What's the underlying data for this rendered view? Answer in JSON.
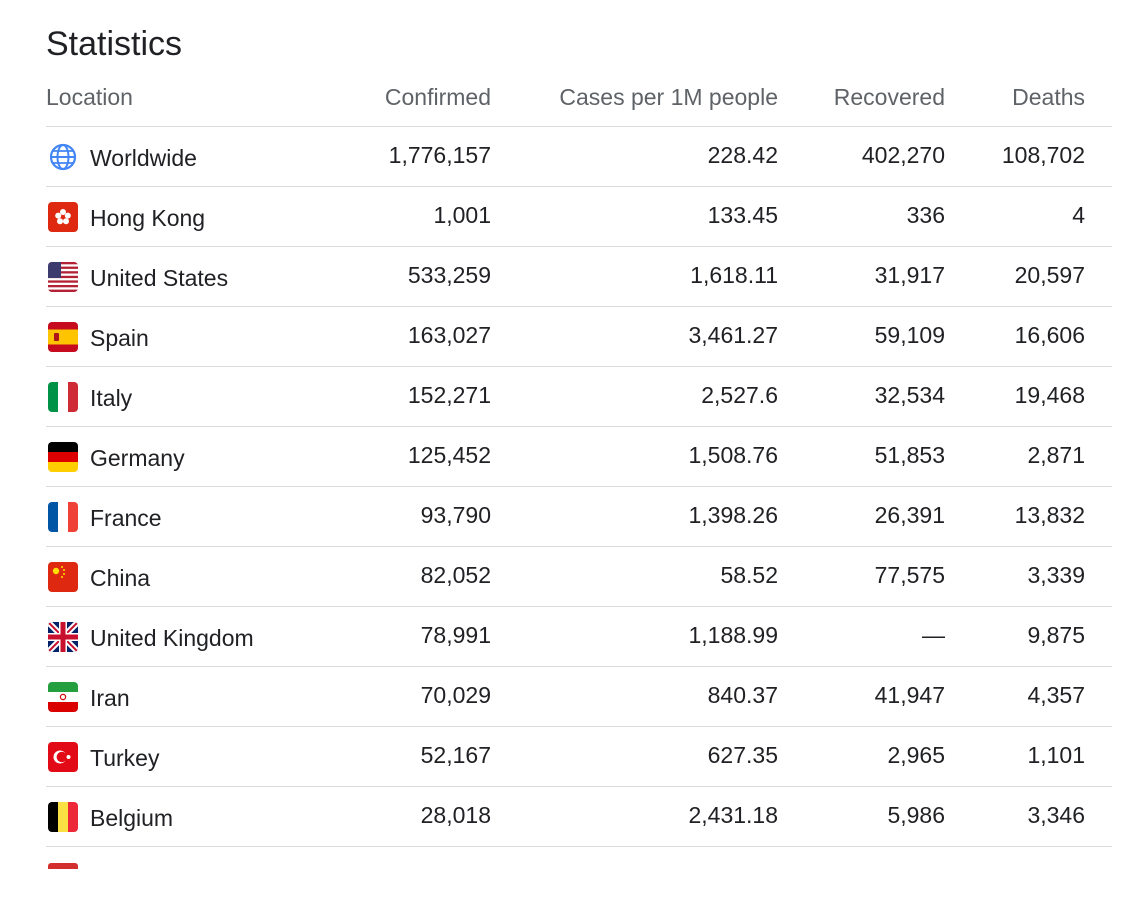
{
  "title": "Statistics",
  "headers": {
    "location": "Location",
    "confirmed": "Confirmed",
    "cases_per_1m": "Cases per 1M people",
    "recovered": "Recovered",
    "deaths": "Deaths"
  },
  "rows": [
    {
      "location": "Worldwide",
      "icon": "globe-icon",
      "confirmed": "1,776,157",
      "cases_per_1m": "228.42",
      "recovered": "402,270",
      "deaths": "108,702"
    },
    {
      "location": "Hong Kong",
      "icon": "hong-kong-flag-icon",
      "confirmed": "1,001",
      "cases_per_1m": "133.45",
      "recovered": "336",
      "deaths": "4"
    },
    {
      "location": "United States",
      "icon": "united-states-flag-icon",
      "confirmed": "533,259",
      "cases_per_1m": "1,618.11",
      "recovered": "31,917",
      "deaths": "20,597"
    },
    {
      "location": "Spain",
      "icon": "spain-flag-icon",
      "confirmed": "163,027",
      "cases_per_1m": "3,461.27",
      "recovered": "59,109",
      "deaths": "16,606"
    },
    {
      "location": "Italy",
      "icon": "italy-flag-icon",
      "confirmed": "152,271",
      "cases_per_1m": "2,527.6",
      "recovered": "32,534",
      "deaths": "19,468"
    },
    {
      "location": "Germany",
      "icon": "germany-flag-icon",
      "confirmed": "125,452",
      "cases_per_1m": "1,508.76",
      "recovered": "51,853",
      "deaths": "2,871"
    },
    {
      "location": "France",
      "icon": "france-flag-icon",
      "confirmed": "93,790",
      "cases_per_1m": "1,398.26",
      "recovered": "26,391",
      "deaths": "13,832"
    },
    {
      "location": "China",
      "icon": "china-flag-icon",
      "confirmed": "82,052",
      "cases_per_1m": "58.52",
      "recovered": "77,575",
      "deaths": "3,339"
    },
    {
      "location": "United Kingdom",
      "icon": "united-kingdom-flag-icon",
      "confirmed": "78,991",
      "cases_per_1m": "1,188.99",
      "recovered": "—",
      "deaths": "9,875"
    },
    {
      "location": "Iran",
      "icon": "iran-flag-icon",
      "confirmed": "70,029",
      "cases_per_1m": "840.37",
      "recovered": "41,947",
      "deaths": "4,357"
    },
    {
      "location": "Turkey",
      "icon": "turkey-flag-icon",
      "confirmed": "52,167",
      "cases_per_1m": "627.35",
      "recovered": "2,965",
      "deaths": "1,101"
    },
    {
      "location": "Belgium",
      "icon": "belgium-flag-icon",
      "confirmed": "28,018",
      "cases_per_1m": "2,431.18",
      "recovered": "5,986",
      "deaths": "3,346"
    }
  ],
  "colors": {
    "text": "#202124",
    "header_text": "#5f6368",
    "divider": "#dadce0",
    "globe": "#4285f4"
  }
}
